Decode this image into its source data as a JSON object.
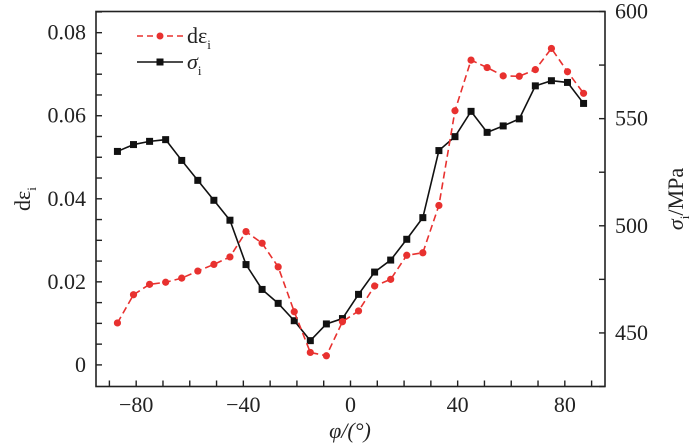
{
  "chart_data": {
    "type": "line",
    "title": "",
    "xlabel": "φ/(°)",
    "ylabel_left": {
      "main": "dε",
      "sub": "i"
    },
    "ylabel_right": {
      "main": "σ",
      "sub": "i",
      "suffix": "/MPa"
    },
    "xlim": [
      -95,
      95
    ],
    "ylim_left": [
      -0.0052,
      0.0851
    ],
    "ylim_right": [
      425,
      600
    ],
    "x_ticks": [
      -80,
      -40,
      0,
      40,
      80
    ],
    "x_tick_labels": [
      "−80",
      "−40",
      "0",
      "40",
      "80"
    ],
    "y_left_ticks": [
      0,
      0.02,
      0.04,
      0.06,
      0.08
    ],
    "y_left_tick_labels": [
      "0",
      "0.02",
      "0.04",
      "0.06",
      "0.08"
    ],
    "y_right_ticks": [
      450,
      500,
      550,
      600
    ],
    "y_right_tick_labels": [
      "450",
      "500",
      "550",
      "600"
    ],
    "grid": false,
    "legend_position": "top-left",
    "x": [
      -87,
      -81,
      -75,
      -69,
      -63,
      -57,
      -51,
      -45,
      -39,
      -33,
      -27,
      -21,
      -15,
      -9,
      -3,
      3,
      9,
      15,
      21,
      27,
      33,
      39,
      45,
      51,
      57,
      63,
      69,
      75,
      81,
      87
    ],
    "series": [
      {
        "name": "dε_i",
        "legend_main": "dε",
        "legend_sub": "i",
        "axis": "left",
        "color": "#e8312f",
        "style": "dashed",
        "marker": "circle",
        "values": [
          0.0101,
          0.0169,
          0.0194,
          0.0199,
          0.0209,
          0.0226,
          0.0242,
          0.026,
          0.0321,
          0.0293,
          0.0236,
          0.0128,
          0.003,
          0.0022,
          0.0104,
          0.013,
          0.019,
          0.0206,
          0.0264,
          0.027,
          0.0384,
          0.0612,
          0.0734,
          0.0716,
          0.0696,
          0.0695,
          0.0711,
          0.0762,
          0.0706,
          0.0654
        ]
      },
      {
        "name": "σ_i",
        "legend_main": "σ",
        "legend_sub": "i",
        "axis": "right",
        "color": "#111111",
        "style": "solid",
        "marker": "square",
        "values": [
          534.7,
          537.9,
          539.4,
          540.2,
          530.5,
          521.2,
          511.9,
          502.6,
          481.9,
          470.3,
          463.8,
          455.7,
          446.4,
          454.2,
          456.7,
          468.0,
          478.4,
          484.0,
          493.7,
          503.8,
          535.1,
          541.6,
          553.4,
          543.6,
          546.6,
          549.9,
          565.3,
          567.7,
          566.9,
          557.1
        ]
      }
    ]
  }
}
